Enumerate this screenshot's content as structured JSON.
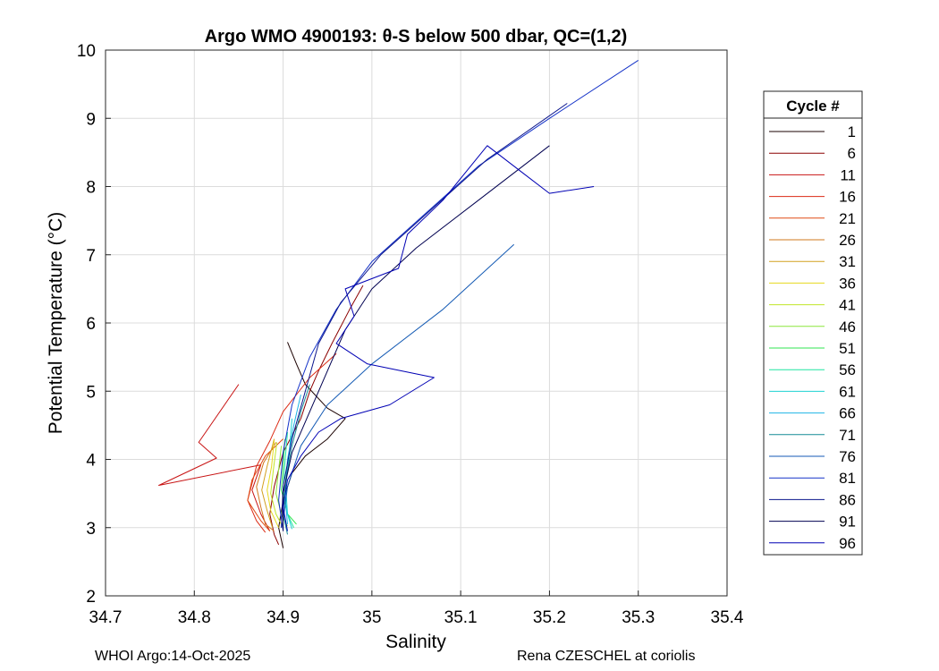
{
  "chart_data": {
    "type": "line",
    "title": "Argo WMO 4900193: θ-S below 500 dbar,  QC=(1,2)",
    "xlabel": "Salinity",
    "ylabel": "Potential Temperature (°C)",
    "xlim": [
      34.7,
      35.4
    ],
    "ylim": [
      2,
      10
    ],
    "xticks": [
      "34.7",
      "34.8",
      "34.9",
      "35",
      "35.1",
      "35.2",
      "35.3",
      "35.4"
    ],
    "yticks": [
      "2",
      "3",
      "4",
      "5",
      "6",
      "7",
      "8",
      "9",
      "10"
    ],
    "grid": true,
    "legend_title": "Cycle #",
    "legend_position": "right-outside",
    "series": [
      {
        "name": "1",
        "color": "#1a0000",
        "points": [
          [
            34.905,
            5.72
          ],
          [
            34.915,
            5.4
          ],
          [
            34.925,
            5.1
          ],
          [
            34.95,
            4.75
          ],
          [
            34.97,
            4.6
          ],
          [
            34.95,
            4.3
          ],
          [
            34.925,
            4.05
          ],
          [
            34.91,
            3.8
          ],
          [
            34.9,
            3.4
          ],
          [
            34.895,
            3.0
          ],
          [
            34.9,
            2.7
          ]
        ]
      },
      {
        "name": "6",
        "color": "#8b0000",
        "points": [
          [
            34.99,
            6.55
          ],
          [
            34.975,
            6.2
          ],
          [
            34.955,
            5.7
          ],
          [
            34.94,
            5.3
          ],
          [
            34.93,
            5.0
          ],
          [
            34.92,
            4.6
          ],
          [
            34.9,
            4.1
          ],
          [
            34.89,
            3.6
          ],
          [
            34.885,
            3.2
          ],
          [
            34.89,
            2.9
          ],
          [
            34.895,
            2.75
          ]
        ]
      },
      {
        "name": "11",
        "color": "#c81414",
        "points": [
          [
            34.85,
            5.1
          ],
          [
            34.805,
            4.25
          ],
          [
            34.825,
            4.02
          ],
          [
            34.76,
            3.62
          ],
          [
            34.875,
            3.92
          ],
          [
            34.865,
            3.55
          ],
          [
            34.875,
            3.2
          ],
          [
            34.885,
            2.95
          ]
        ]
      },
      {
        "name": "16",
        "color": "#dc2a14",
        "points": [
          [
            34.96,
            5.55
          ],
          [
            34.93,
            5.2
          ],
          [
            34.9,
            4.7
          ],
          [
            34.885,
            4.27
          ],
          [
            34.87,
            3.9
          ],
          [
            34.86,
            3.4
          ],
          [
            34.87,
            3.1
          ],
          [
            34.88,
            2.93
          ]
        ]
      },
      {
        "name": "21",
        "color": "#e04a14",
        "points": [
          [
            34.9,
            4.3
          ],
          [
            34.88,
            4.05
          ],
          [
            34.865,
            3.7
          ],
          [
            34.86,
            3.4
          ],
          [
            34.875,
            3.1
          ],
          [
            34.885,
            2.95
          ]
        ]
      },
      {
        "name": "26",
        "color": "#d2781e",
        "points": [
          [
            34.892,
            4.25
          ],
          [
            34.878,
            3.95
          ],
          [
            34.87,
            3.6
          ],
          [
            34.875,
            3.3
          ],
          [
            34.88,
            3.05
          ],
          [
            34.89,
            2.95
          ]
        ]
      },
      {
        "name": "31",
        "color": "#d2a01e",
        "points": [
          [
            34.89,
            4.3
          ],
          [
            34.882,
            3.9
          ],
          [
            34.876,
            3.55
          ],
          [
            34.882,
            3.25
          ],
          [
            34.888,
            3.0
          ]
        ]
      },
      {
        "name": "36",
        "color": "#e6d81e",
        "points": [
          [
            34.89,
            4.28
          ],
          [
            34.887,
            3.9
          ],
          [
            34.882,
            3.55
          ],
          [
            34.886,
            3.25
          ],
          [
            34.895,
            3.0
          ]
        ]
      },
      {
        "name": "41",
        "color": "#c0e628",
        "points": [
          [
            34.893,
            4.25
          ],
          [
            34.889,
            3.85
          ],
          [
            34.886,
            3.5
          ],
          [
            34.892,
            3.2
          ],
          [
            34.9,
            3.0
          ]
        ]
      },
      {
        "name": "46",
        "color": "#8ce63c",
        "points": [
          [
            34.898,
            4.2
          ],
          [
            34.895,
            3.85
          ],
          [
            34.892,
            3.5
          ],
          [
            34.898,
            3.2
          ],
          [
            34.905,
            3.02
          ]
        ]
      },
      {
        "name": "51",
        "color": "#32e650",
        "points": [
          [
            34.902,
            4.3
          ],
          [
            34.9,
            3.9
          ],
          [
            34.898,
            3.55
          ],
          [
            34.905,
            3.2
          ],
          [
            34.915,
            3.05
          ]
        ]
      },
      {
        "name": "56",
        "color": "#1ee6a0",
        "points": [
          [
            34.905,
            4.4
          ],
          [
            34.902,
            3.95
          ],
          [
            34.9,
            3.55
          ],
          [
            34.905,
            3.2
          ],
          [
            34.912,
            3.0
          ]
        ]
      },
      {
        "name": "61",
        "color": "#1ed2d2",
        "points": [
          [
            34.91,
            4.6
          ],
          [
            34.907,
            4.1
          ],
          [
            34.903,
            3.6
          ],
          [
            34.905,
            3.2
          ],
          [
            34.91,
            2.98
          ]
        ]
      },
      {
        "name": "66",
        "color": "#1eb4e6",
        "points": [
          [
            34.92,
            4.95
          ],
          [
            34.912,
            4.5
          ],
          [
            34.905,
            4.0
          ],
          [
            34.902,
            3.5
          ],
          [
            34.905,
            3.05
          ]
        ]
      },
      {
        "name": "71",
        "color": "#148c96",
        "points": [
          [
            34.93,
            5.1
          ],
          [
            34.92,
            4.7
          ],
          [
            34.91,
            4.2
          ],
          [
            34.903,
            3.7
          ],
          [
            34.9,
            3.2
          ],
          [
            34.905,
            2.9
          ]
        ]
      },
      {
        "name": "76",
        "color": "#145ab4",
        "points": [
          [
            35.16,
            7.15
          ],
          [
            35.08,
            6.2
          ],
          [
            35.0,
            5.4
          ],
          [
            34.95,
            4.8
          ],
          [
            34.92,
            4.2
          ],
          [
            34.905,
            3.6
          ],
          [
            34.9,
            3.1
          ]
        ]
      },
      {
        "name": "81",
        "color": "#1432c8",
        "points": [
          [
            35.3,
            9.85
          ],
          [
            35.2,
            9.0
          ],
          [
            35.12,
            8.3
          ],
          [
            35.06,
            7.6
          ],
          [
            35.0,
            6.9
          ],
          [
            34.96,
            6.2
          ],
          [
            34.93,
            5.5
          ],
          [
            34.91,
            4.8
          ],
          [
            34.9,
            4.1
          ],
          [
            34.895,
            3.4
          ],
          [
            34.9,
            2.95
          ]
        ]
      },
      {
        "name": "86",
        "color": "#0a148c",
        "points": [
          [
            35.22,
            9.22
          ],
          [
            35.13,
            8.4
          ],
          [
            35.07,
            7.7
          ],
          [
            35.01,
            7.0
          ],
          [
            34.965,
            6.3
          ],
          [
            34.94,
            5.7
          ],
          [
            34.925,
            5.0
          ],
          [
            34.91,
            4.3
          ],
          [
            34.9,
            3.6
          ],
          [
            34.898,
            3.0
          ]
        ]
      },
      {
        "name": "91",
        "color": "#000050",
        "points": [
          [
            35.2,
            8.6
          ],
          [
            35.12,
            7.8
          ],
          [
            35.05,
            7.1
          ],
          [
            35.0,
            6.5
          ],
          [
            34.97,
            5.9
          ],
          [
            34.95,
            5.3
          ],
          [
            34.93,
            4.7
          ],
          [
            34.91,
            4.1
          ],
          [
            34.9,
            3.5
          ],
          [
            34.9,
            2.95
          ]
        ]
      },
      {
        "name": "96",
        "color": "#0000b4",
        "points": [
          [
            35.25,
            8.0
          ],
          [
            35.2,
            7.9
          ],
          [
            35.17,
            8.2
          ],
          [
            35.13,
            8.6
          ],
          [
            35.08,
            7.8
          ],
          [
            35.04,
            7.3
          ],
          [
            35.03,
            6.8
          ],
          [
            34.97,
            6.5
          ],
          [
            34.98,
            6.1
          ],
          [
            34.96,
            5.7
          ],
          [
            34.995,
            5.4
          ],
          [
            35.07,
            5.2
          ],
          [
            35.02,
            4.8
          ],
          [
            34.965,
            4.6
          ],
          [
            34.94,
            4.4
          ],
          [
            34.92,
            4.05
          ],
          [
            34.905,
            3.7
          ],
          [
            34.9,
            3.3
          ],
          [
            34.905,
            2.95
          ]
        ]
      }
    ]
  },
  "footer": {
    "left": "WHOI Argo:14-Oct-2025",
    "right": "Rena CZESCHEL at coriolis"
  }
}
